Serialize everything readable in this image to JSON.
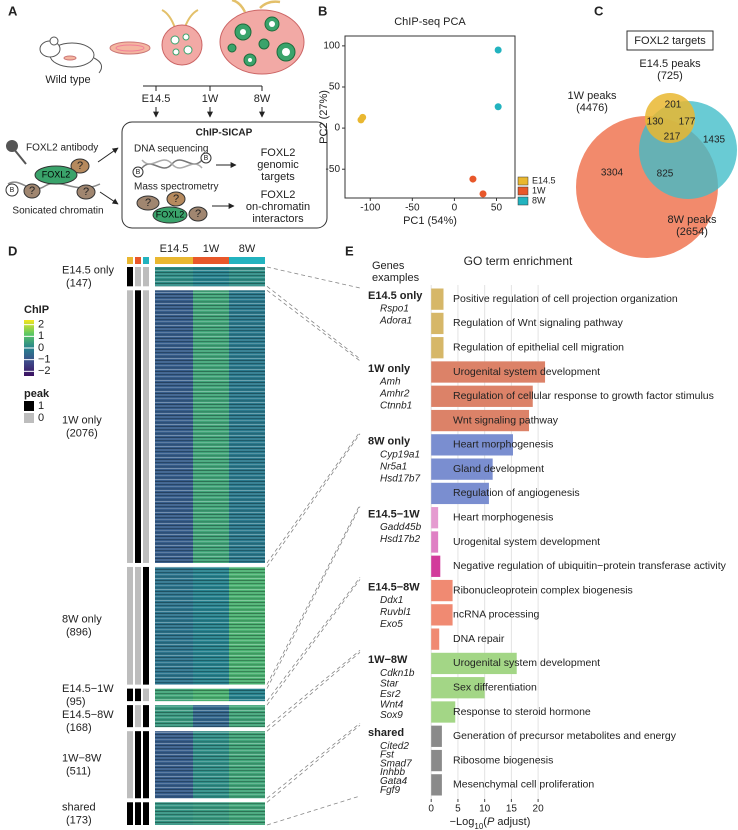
{
  "panel_a": {
    "letter": "A",
    "wild_type": "Wild type",
    "stages": [
      "E14.5",
      "1W",
      "8W"
    ],
    "method": "ChIP-SICAP",
    "antibody": "FOXL2 antibody",
    "chromatin": "Sonicated chromatin",
    "dna_sequencing": "DNA sequencing",
    "mass_spectrometry": "Mass spectrometry",
    "genomic_targets": [
      "FOXL2",
      "genomic",
      "targets"
    ],
    "interactors": [
      "FOXL2",
      "on-chromatin",
      "interactors"
    ],
    "protein": "FOXL2",
    "unknown": "?",
    "bead": "B"
  },
  "chart_data": [
    {
      "type": "scatter",
      "letter": "B",
      "title": "ChIP-seq PCA",
      "xlabel": "PC1 (54%)",
      "ylabel": "PC2 (27%)",
      "xlim": [
        -130,
        72
      ],
      "ylim": [
        -85,
        112
      ],
      "xticks": [
        -100,
        -50,
        0,
        50
      ],
      "yticks": [
        -50,
        0,
        50,
        100
      ],
      "legend": "right",
      "series": [
        {
          "name": "E14.5",
          "color": "#e9b730",
          "x": [
            -111,
            -109
          ],
          "values": [
            10,
            13
          ]
        },
        {
          "name": "1W",
          "color": "#e8572a",
          "x": [
            34,
            22
          ],
          "values": [
            -80,
            -62
          ]
        },
        {
          "name": "8W",
          "color": "#22b3bf",
          "x": [
            52,
            52
          ],
          "values": [
            26,
            95
          ]
        }
      ]
    },
    {
      "type": "venn",
      "letter": "C",
      "title": "FOXL2 targets",
      "sets": [
        {
          "name": "E14.5 peaks",
          "count": 725,
          "count_label": "(725)",
          "color": "#e9b730"
        },
        {
          "name": "1W peaks",
          "count": 4476,
          "count_label": "(4476)",
          "color": "#f28a6c"
        },
        {
          "name": "8W peaks",
          "count": 2654,
          "count_label": "(2654)",
          "color": "#3fbcc8"
        }
      ],
      "regions": [
        {
          "sets": [
            0
          ],
          "value": 201
        },
        {
          "sets": [
            0,
            1
          ],
          "value": 130
        },
        {
          "sets": [
            0,
            2
          ],
          "value": 177
        },
        {
          "sets": [
            0,
            1,
            2
          ],
          "value": 217
        },
        {
          "sets": [
            1
          ],
          "value": 3304
        },
        {
          "sets": [
            1,
            2
          ],
          "value": 825
        },
        {
          "sets": [
            2
          ],
          "value": 1435
        }
      ]
    },
    {
      "type": "heatmap",
      "letter": "D",
      "columns": [
        {
          "name": "E14.5",
          "color": "#e9b730"
        },
        {
          "name": "1W",
          "color": "#e8572a"
        },
        {
          "name": "8W",
          "color": "#22b3bf"
        }
      ],
      "groups": [
        {
          "name": "E14.5 only",
          "count": 147,
          "count_label": "(147)",
          "peaks": [
            1,
            0,
            0
          ],
          "values": [
            0.2,
            0,
            0.2
          ]
        },
        {
          "name": "1W only",
          "count": 2076,
          "count_label": "(2076)",
          "peaks": [
            0,
            1,
            0
          ],
          "values": [
            -0.8,
            0.6,
            -0.2
          ]
        },
        {
          "name": "8W only",
          "count": 896,
          "count_label": "(896)",
          "peaks": [
            0,
            0,
            1
          ],
          "values": [
            -0.3,
            0,
            0.8
          ]
        },
        {
          "name": "E14.5−1W",
          "count": 95,
          "count_label": "(95)",
          "peaks": [
            1,
            1,
            0
          ],
          "values": [
            0.6,
            0.8,
            0
          ]
        },
        {
          "name": "E14.5−8W",
          "count": 168,
          "count_label": "(168)",
          "peaks": [
            1,
            0,
            1
          ],
          "values": [
            0.4,
            -0.6,
            0.6
          ]
        },
        {
          "name": "1W−8W",
          "count": 511,
          "count_label": "(511)",
          "peaks": [
            0,
            1,
            1
          ],
          "values": [
            -0.8,
            0.2,
            0.6
          ]
        },
        {
          "name": "shared",
          "count": 173,
          "count_label": "(173)",
          "peaks": [
            1,
            1,
            1
          ],
          "values": [
            0.3,
            0.4,
            0.6
          ]
        }
      ],
      "colorbar": {
        "title": "ChIP",
        "lim": [
          -2.4,
          2.4
        ],
        "ticks": [
          2,
          1,
          0,
          {
            "value": -1,
            "label": "−1"
          },
          {
            "value": -2,
            "label": "−2"
          }
        ],
        "colors": [
          "#3b0f60",
          "#3e4a89",
          "#26828e",
          "#5cc863",
          "#f4e61e"
        ]
      },
      "peak_legend": {
        "title": "peak",
        "levels": [
          {
            "value": 1,
            "color": "#000000"
          },
          {
            "value": 0,
            "color": "#bdbdbd"
          }
        ]
      }
    },
    {
      "type": "bar",
      "orientation": "horizontal",
      "letter": "E",
      "title": "GO term enrichment",
      "genes_header": [
        "Genes",
        "examples"
      ],
      "xlabel_parts": [
        "−Log",
        "10",
        "(",
        "P",
        " adjust)"
      ],
      "xlim": [
        -0.6,
        22.6
      ],
      "xticks": [
        0,
        5,
        10,
        15,
        20
      ],
      "grid": true,
      "groups": [
        {
          "name": "E14.5 only",
          "color": "#d6b768",
          "genes": [
            "Rspo1",
            "Adora1"
          ],
          "categories": [
            "Positive regulation of cell projection organization",
            "Regulation of Wnt signaling pathway",
            "Regulation of epithelial cell migration"
          ],
          "values": [
            2.3,
            2.3,
            2.3
          ]
        },
        {
          "name": "1W only",
          "color": "#dc8268",
          "genes": [
            "Amh",
            "Amhr2",
            "Ctnnb1"
          ],
          "categories": [
            "Urogenital system development",
            "Regulation of cellular response to growth factor stimulus",
            "Wnt signaling pathway"
          ],
          "values": [
            21.3,
            19,
            18.3
          ]
        },
        {
          "name": "8W only",
          "color": "#7a8ed0",
          "genes": [
            "Cyp19a1",
            "Nr5a1",
            "Hsd17b7"
          ],
          "categories": [
            "Heart morphogenesis",
            "Gland development",
            "Regulation of angiogenesis"
          ],
          "values": [
            15.3,
            11.5,
            10.8
          ]
        },
        {
          "name": "E14.5−1W",
          "colors": [
            "#e59bd0",
            "#df80c4",
            "#d23b9b"
          ],
          "genes": [
            "Gadd45b",
            "Hsd17b2"
          ],
          "categories": [
            "Heart morphogenesis",
            "Urogenital system development",
            "Negative regulation of ubiquitin−protein transferase activity"
          ],
          "values": [
            1.3,
            1.3,
            1.7
          ]
        },
        {
          "name": "E14.5−8W",
          "color": "#f08a72",
          "genes": [
            "Ddx1",
            "Ruvbl1",
            "Exo5"
          ],
          "categories": [
            "Ribonucleoprotein complex biogenesis",
            "ncRNA processing",
            "DNA repair"
          ],
          "values": [
            4,
            4,
            1.5
          ]
        },
        {
          "name": "1W−8W",
          "color": "#a3d686",
          "genes": [
            "Cdkn1b",
            "Star",
            "Esr2",
            "Wnt4",
            "Sox9"
          ],
          "categories": [
            "Urogenital system development",
            "Sex differentiation",
            "Response to steroid hormone"
          ],
          "values": [
            16,
            10,
            4.5
          ]
        },
        {
          "name": "shared",
          "color": "#8a8a8a",
          "genes": [
            "Cited2",
            "Fst",
            "Smad7",
            "Inhbb",
            "Gata4",
            "Fgf9"
          ],
          "categories": [
            "Generation of precursor metabolites and energy",
            "Ribosome biogenesis",
            "Mesenchymal cell proliferation"
          ],
          "values": [
            2,
            2,
            2
          ]
        }
      ]
    }
  ]
}
